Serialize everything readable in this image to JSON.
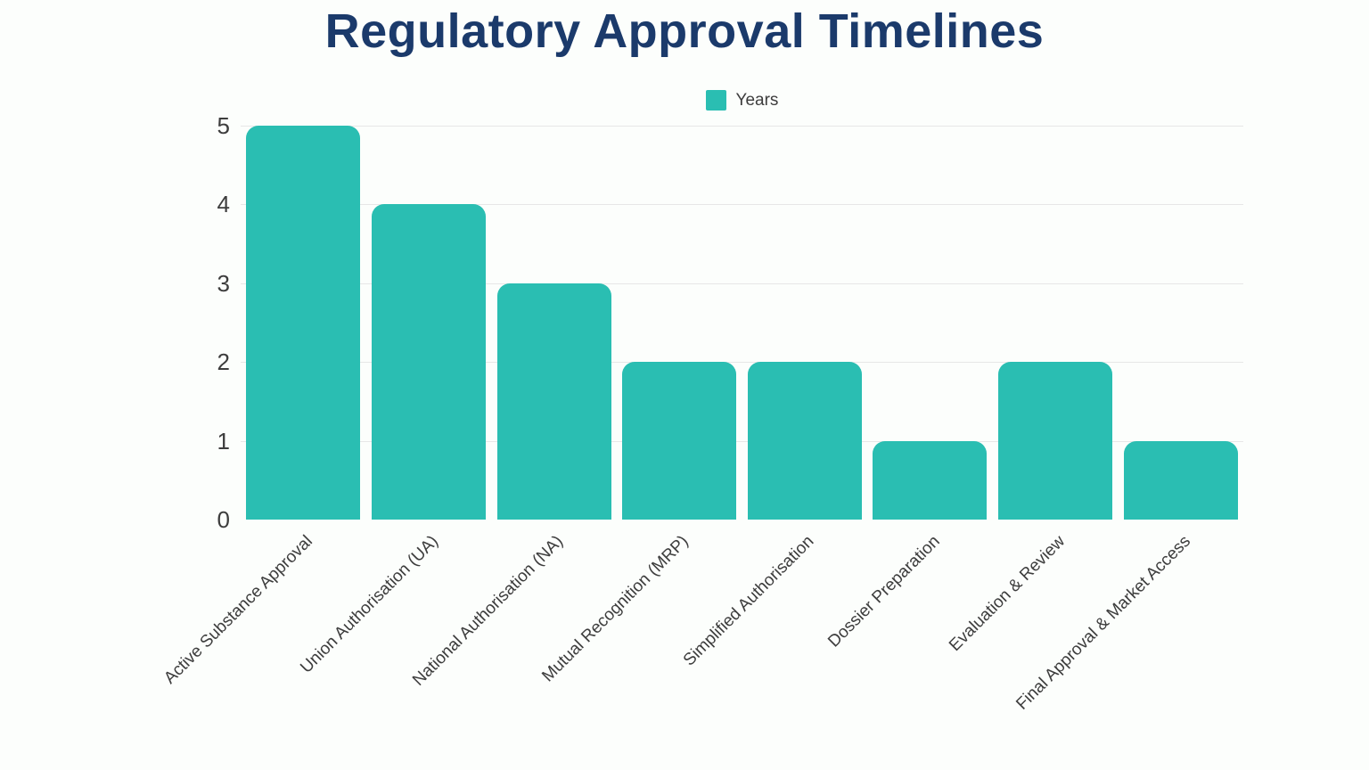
{
  "title": "Regulatory Approval Timelines",
  "legend": {
    "label": "Years",
    "position": "top-center"
  },
  "colors": {
    "bar": "#2abeb2",
    "title": "#1b3a6b",
    "axis_text": "#3d3d3d",
    "grid": "#e7e7e7",
    "background": "#fcfefc"
  },
  "chart_data": {
    "type": "bar",
    "title": "Regulatory Approval Timelines",
    "categories": [
      "Active Substance Approval",
      "Union Authorisation (UA)",
      "National Authorisation (NA)",
      "Mutual Recognition (MRP)",
      "Simplified Authorisation",
      "Dossier Preparation",
      "Evaluation & Review",
      "Final Approval & Market Access"
    ],
    "series": [
      {
        "name": "Years",
        "values": [
          5,
          4,
          3,
          2,
          2,
          1,
          2,
          1
        ]
      }
    ],
    "xlabel": "",
    "ylabel": "",
    "ylim": [
      0,
      5
    ],
    "yticks": [
      0,
      1,
      2,
      3,
      4,
      5
    ],
    "grid": true,
    "legend_position": "top-center",
    "x_tick_rotation": -45
  }
}
